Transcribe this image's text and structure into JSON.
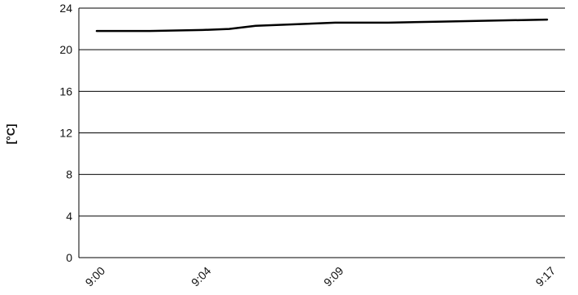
{
  "chart_data": {
    "type": "line",
    "ylabel": "[°C]",
    "xlabel": "",
    "title": "",
    "ylim": [
      0,
      24
    ],
    "y_ticks": [
      "0",
      "4",
      "8",
      "12",
      "16",
      "20",
      "24"
    ],
    "x_ticks": [
      {
        "label": "9:00",
        "x": 0
      },
      {
        "label": "9:04",
        "x": 4
      },
      {
        "label": "9:09",
        "x": 9
      },
      {
        "label": "9:17",
        "x": 17
      }
    ],
    "x_range": [
      0,
      17
    ],
    "grid": true,
    "series": [
      {
        "values": [
          {
            "x": 0,
            "y": 21.8
          },
          {
            "x": 2,
            "y": 21.8
          },
          {
            "x": 4,
            "y": 21.9
          },
          {
            "x": 5,
            "y": 22.0
          },
          {
            "x": 6,
            "y": 22.3
          },
          {
            "x": 9,
            "y": 22.6
          },
          {
            "x": 11,
            "y": 22.6
          },
          {
            "x": 13,
            "y": 22.7
          },
          {
            "x": 17,
            "y": 22.9
          }
        ]
      }
    ],
    "colors": {
      "line": "#000000",
      "grid": "#000000",
      "axis": "#000000"
    }
  }
}
